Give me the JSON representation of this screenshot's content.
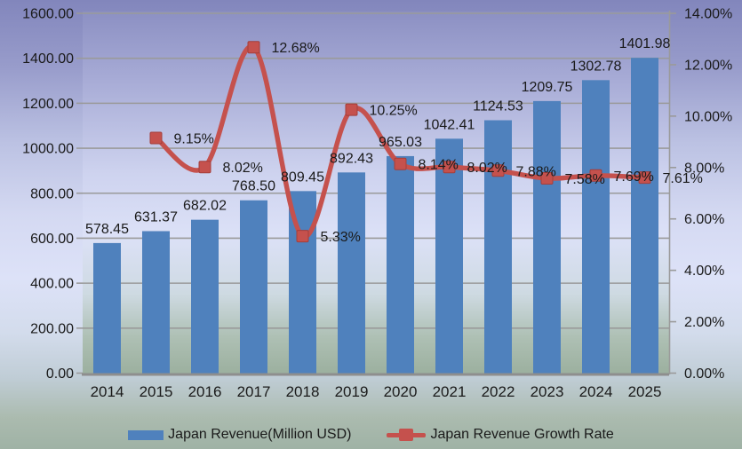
{
  "chart_data": {
    "type": "bar",
    "subtype": "bar-line-combo",
    "title": "",
    "categories": [
      "2014",
      "2015",
      "2016",
      "2017",
      "2018",
      "2019",
      "2020",
      "2021",
      "2022",
      "2023",
      "2024",
      "2025"
    ],
    "series": [
      {
        "name": "Japan Revenue(Million USD)",
        "type": "bar",
        "axis": "left",
        "color": "#4F81BD",
        "values": [
          578.45,
          631.37,
          682.02,
          768.5,
          809.45,
          892.43,
          965.03,
          1042.41,
          1124.53,
          1209.75,
          1302.78,
          1401.98
        ],
        "labels": [
          "578.45",
          "631.37",
          "682.02",
          "768.50",
          "809.45",
          "892.43",
          "965.03",
          "1042.41",
          "1124.53",
          "1209.75",
          "1302.78",
          "1401.98"
        ]
      },
      {
        "name": "Japan Revenue Growth Rate",
        "type": "line",
        "axis": "right",
        "color": "#C5514D",
        "marker_edge_color": "#A43E3B",
        "smoothed": true,
        "values": [
          null,
          9.15,
          8.02,
          12.68,
          5.33,
          10.25,
          8.14,
          8.02,
          7.88,
          7.58,
          7.69,
          7.61
        ],
        "labels": [
          "",
          "9.15%",
          "8.02%",
          "12.68%",
          "5.33%",
          "10.25%",
          "8.14%",
          "8.02%",
          "7.88%",
          "7.58%",
          "7.69%",
          "7.61%"
        ]
      }
    ],
    "left_axis": {
      "min": 0,
      "max": 1600,
      "step": 200,
      "tick_labels": [
        "0.00",
        "200.00",
        "400.00",
        "600.00",
        "800.00",
        "1000.00",
        "1200.00",
        "1400.00",
        "1600.00"
      ]
    },
    "right_axis": {
      "min": 0,
      "max": 14,
      "step": 2,
      "tick_labels": [
        "0.00%",
        "2.00%",
        "4.00%",
        "6.00%",
        "8.00%",
        "10.00%",
        "12.00%",
        "14.00%"
      ]
    },
    "grid": true,
    "gridline_color": "#9A9A9A",
    "axis_line_color": "#8E8E8E",
    "legend_position": "bottom"
  },
  "legend": {
    "items": [
      {
        "label": "Japan Revenue(Million USD)",
        "color": "#4F81BD",
        "marker": "bar"
      },
      {
        "label": "Japan Revenue Growth Rate",
        "color": "#C5514D",
        "marker": "line-square"
      }
    ]
  }
}
